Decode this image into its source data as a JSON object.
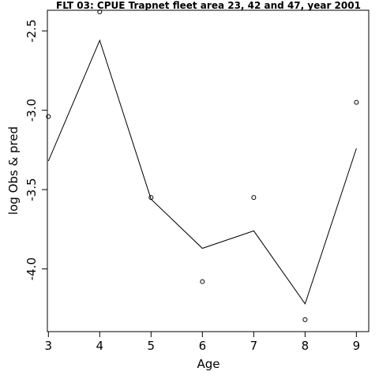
{
  "chart_data": {
    "type": "line",
    "title": "FLT 03: CPUE Trapnet fleet area 23, 42 and 47, year 2001",
    "xlabel": "Age",
    "ylabel": "log Obs & pred",
    "x": [
      3,
      4,
      5,
      6,
      7,
      8,
      9
    ],
    "xticks": [
      "3",
      "4",
      "5",
      "6",
      "7",
      "8",
      "9"
    ],
    "yticks": [
      "-4.0",
      "-3.5",
      "-3.0",
      "-2.5"
    ],
    "ytick_values": [
      -4.0,
      -3.5,
      -3.0,
      -2.5
    ],
    "xlim": [
      2.98,
      9.24
    ],
    "ylim": [
      -4.395,
      -2.37
    ],
    "series": [
      {
        "name": "",
        "style": "points",
        "values": [
          -3.04,
          -2.38,
          -3.55,
          -4.08,
          -3.55,
          -4.32,
          -2.95
        ]
      },
      {
        "name": "",
        "style": "line",
        "values": [
          -3.32,
          -2.56,
          -3.56,
          -3.87,
          -3.76,
          -4.22,
          -3.24
        ]
      }
    ],
    "grid": false,
    "legend": "none"
  }
}
